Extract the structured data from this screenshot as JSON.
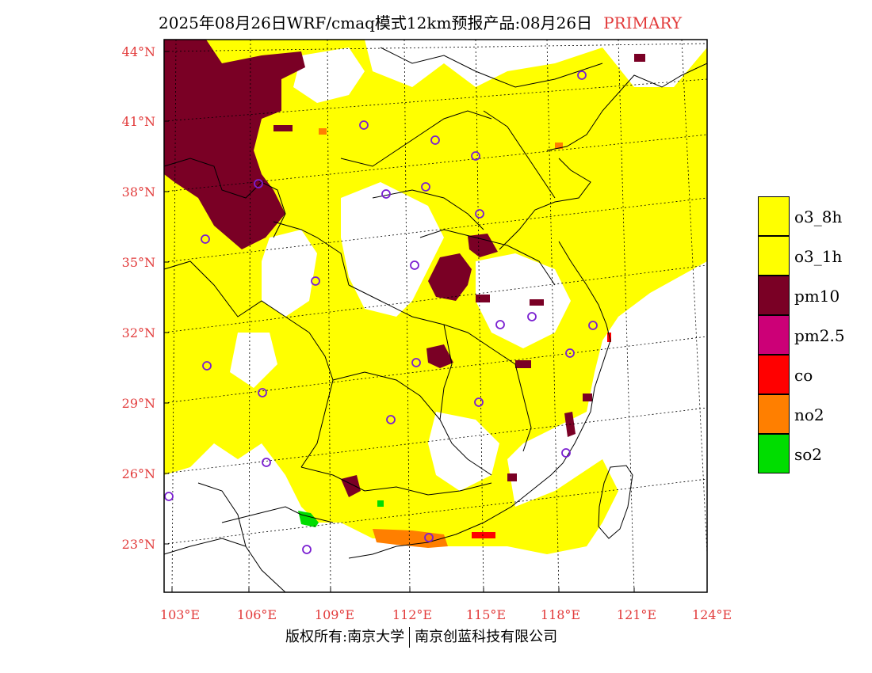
{
  "title": {
    "main": "2025年08月26日WRF/cmaq模式12km预报产品:08月26日",
    "tag": "PRIMARY"
  },
  "map": {
    "lat_labels": [
      "44°N",
      "41°N",
      "38°N",
      "35°N",
      "32°N",
      "29°N",
      "26°N",
      "23°N"
    ],
    "lon_labels": [
      "103°E",
      "106°E",
      "109°E",
      "112°E",
      "115°E",
      "118°E",
      "121°E",
      "124°E"
    ]
  },
  "legend": [
    {
      "label": "o3_8h",
      "color": "#ffff00"
    },
    {
      "label": "o3_1h",
      "color": "#ffff00"
    },
    {
      "label": "pm10",
      "color": "#7a0025"
    },
    {
      "label": "pm2.5",
      "color": "#cc0077"
    },
    {
      "label": "co",
      "color": "#ff0000"
    },
    {
      "label": "no2",
      "color": "#ff7f00"
    },
    {
      "label": "so2",
      "color": "#00dd00"
    }
  ],
  "colors": {
    "accent": "#e23b3b",
    "station": "#7a1fd1",
    "border": "#000000"
  },
  "footer": {
    "left": "版权所有:南京大学",
    "right": "南京创蓝科技有限公司"
  }
}
